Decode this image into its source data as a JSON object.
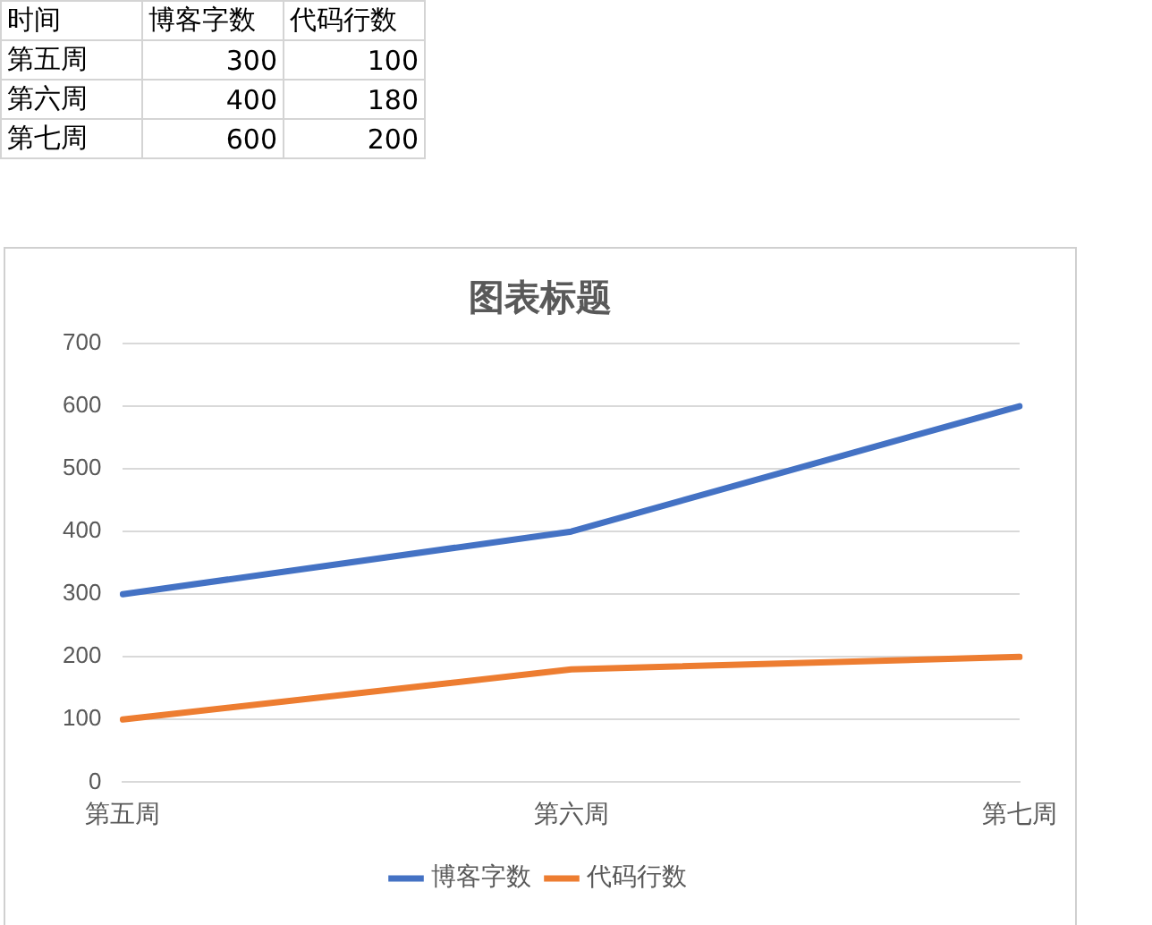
{
  "chart_data": [
    {
      "type": "other",
      "annotations": [
        "时间",
        "博客字数",
        "代码行数",
        "第五周",
        "300",
        "100",
        "第六周",
        "400",
        "180",
        "第七周",
        "600",
        "200"
      ]
    },
    {
      "type": "line",
      "title": "图表标题",
      "categories": [
        "第五周",
        "第六周",
        "第七周"
      ],
      "series": [
        {
          "name": "博客字数",
          "color": "#4472c4",
          "values": [
            300,
            400,
            600
          ]
        },
        {
          "name": "代码行数",
          "color": "#ed7d31",
          "values": [
            100,
            180,
            200
          ]
        }
      ],
      "ylim": [
        0,
        700
      ],
      "yticks": [
        0,
        100,
        200,
        300,
        400,
        500,
        600,
        700
      ],
      "grid": "y",
      "legend": "bottom",
      "marker": "none",
      "line_style": "solid"
    }
  ]
}
